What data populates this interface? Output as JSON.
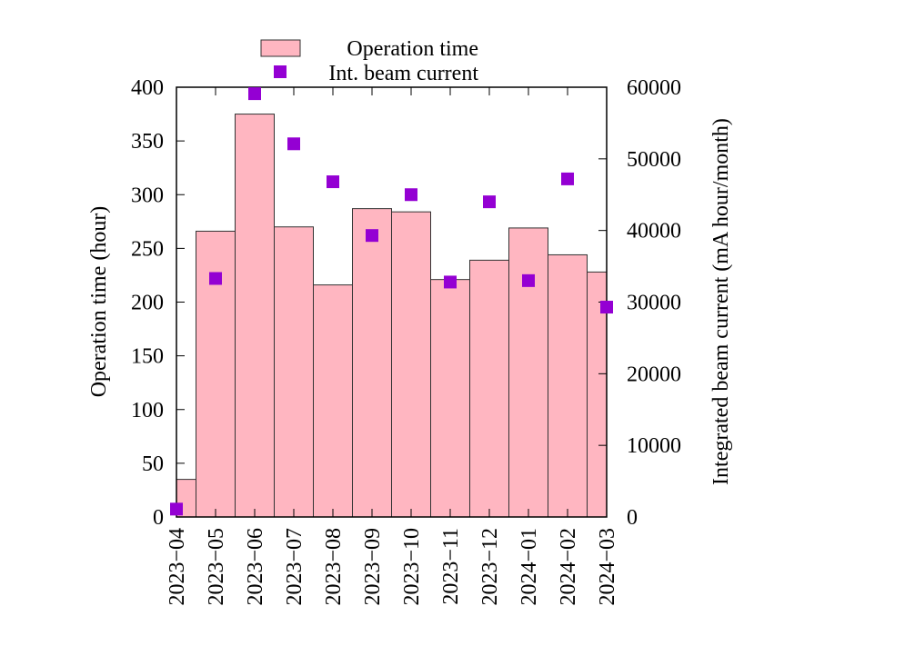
{
  "chart_data": {
    "type": "bar",
    "title": "",
    "xlabel": "",
    "ylabel": "Operation time (hour)",
    "y2label": "Integrated beam current (mA hour/month)",
    "ylim": [
      0,
      400
    ],
    "y2lim": [
      0,
      60000
    ],
    "yticks": [
      0,
      50,
      100,
      150,
      200,
      250,
      300,
      350,
      400
    ],
    "y2ticks": [
      0,
      10000,
      20000,
      30000,
      40000,
      50000,
      60000
    ],
    "categories": [
      "2023−04",
      "2023−05",
      "2023−06",
      "2023−07",
      "2023−08",
      "2023−09",
      "2023−10",
      "2023−11",
      "2023−12",
      "2024−01",
      "2024−02",
      "2024−03"
    ],
    "legend_position": "top",
    "grid": false,
    "series": [
      {
        "name": "Operation time",
        "kind": "bar",
        "axis": "left",
        "color": "#ffb6c1",
        "values": [
          35,
          266,
          375,
          270,
          216,
          287,
          284,
          221,
          239,
          269,
          244,
          228
        ]
      },
      {
        "name": "Int. beam current",
        "kind": "scatter",
        "axis": "right",
        "color": "#9400d3",
        "values": [
          1100,
          33300,
          59100,
          52100,
          46800,
          39300,
          45000,
          32800,
          44000,
          33000,
          47200,
          29300
        ]
      }
    ]
  }
}
